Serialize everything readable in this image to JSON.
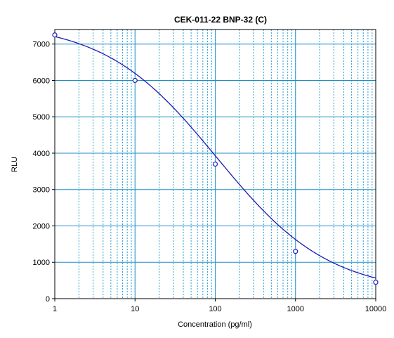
{
  "chart_data": {
    "type": "scatter",
    "title": "CEK-011-22 BNP-32 (C)",
    "xlabel": "Concentration (pg/ml)",
    "ylabel": "RLU",
    "x_scale": "log",
    "xlim": [
      1,
      10000
    ],
    "ylim": [
      0,
      7400
    ],
    "x_ticks": [
      "1",
      "10",
      "100",
      "1000",
      "10000"
    ],
    "y_ticks": [
      "0",
      "1000",
      "2000",
      "3000",
      "4000",
      "5000",
      "6000",
      "7000"
    ],
    "grid": true,
    "legend": "none",
    "points": [
      {
        "x": 1,
        "y": 7250
      },
      {
        "x": 10,
        "y": 6000
      },
      {
        "x": 100,
        "y": 3700
      },
      {
        "x": 1000,
        "y": 1300
      },
      {
        "x": 10000,
        "y": 450
      }
    ],
    "fit_curve": {
      "type": "4PL",
      "top": 7600,
      "bottom": 150,
      "ec50": 105,
      "slope": 0.62
    },
    "colors": {
      "curve": "#1c1cb4",
      "points": "#1c1cb4",
      "minor_grid": "#2a9fd6",
      "major_grid": "#1e8fc4",
      "frame": "#000000"
    }
  }
}
